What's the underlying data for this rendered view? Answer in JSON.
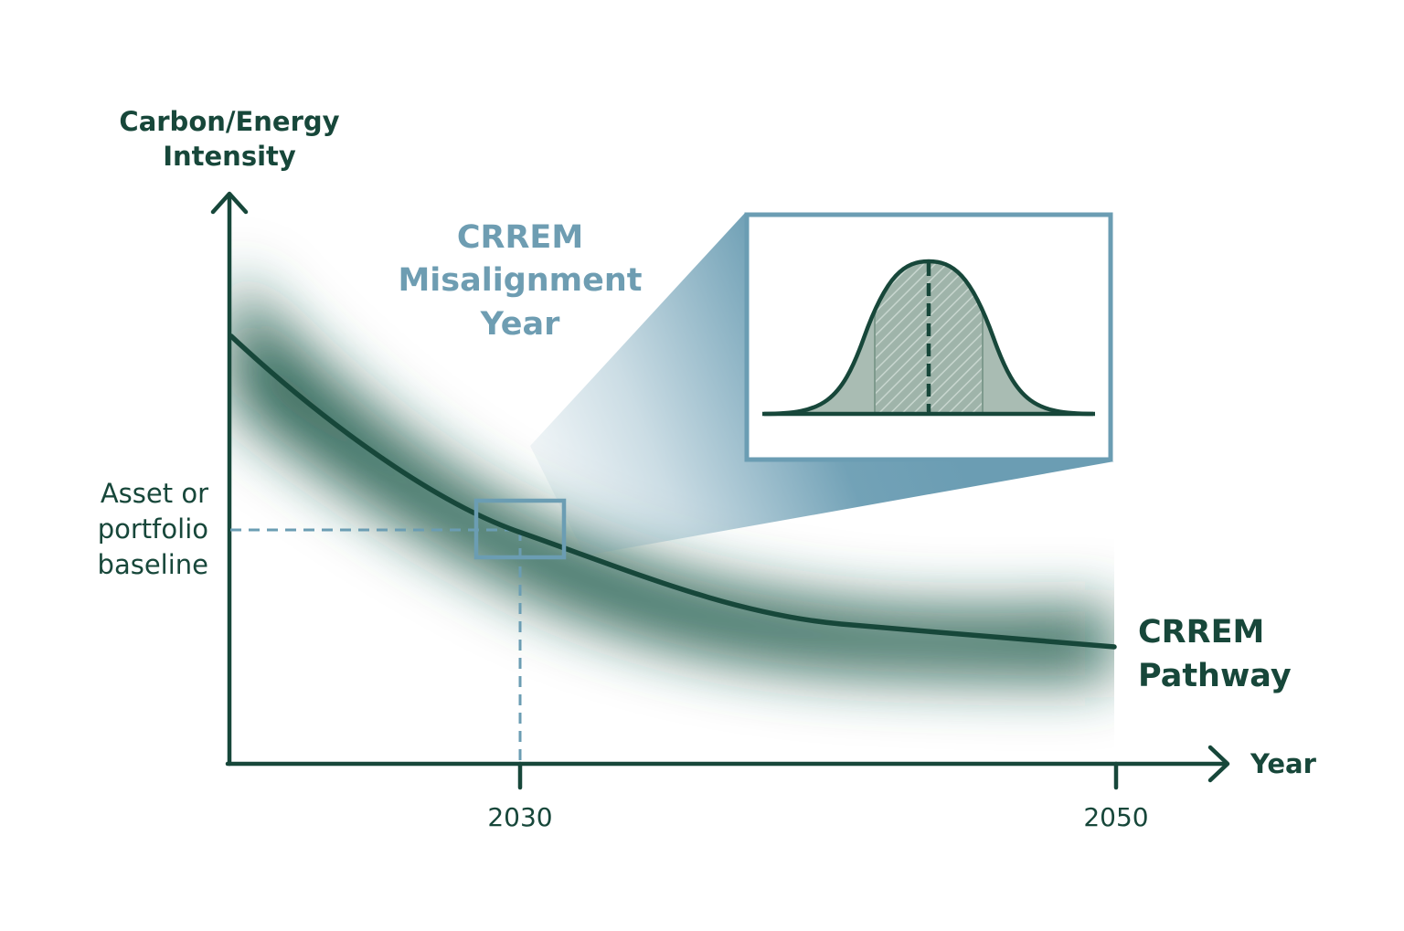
{
  "colors": {
    "dark_green": "#17473a",
    "steel_blue": "#6b9db3",
    "title_blue": "#6e9db2",
    "hatch_fill": "#a9bcb3",
    "background": "#ffffff"
  },
  "y_axis": {
    "label_line1": "Carbon/Energy",
    "label_line2": "Intensity"
  },
  "x_axis": {
    "label": "Year",
    "ticks": [
      "2030",
      "2050"
    ]
  },
  "baseline_label": {
    "line1": "Asset or",
    "line2": "portfolio",
    "line3": "baseline"
  },
  "misalignment_title": {
    "line1": "CRREM",
    "line2": "Misalignment",
    "line3": "Year"
  },
  "pathway_label": {
    "line1": "CRREM",
    "line2": "Pathway"
  },
  "icons": {
    "zoom_inset": "bell-curve-distribution-icon",
    "focus_box": "zoom-focus-box-icon",
    "x_arrow": "arrow-right-icon",
    "y_arrow": "arrow-up-icon"
  }
}
